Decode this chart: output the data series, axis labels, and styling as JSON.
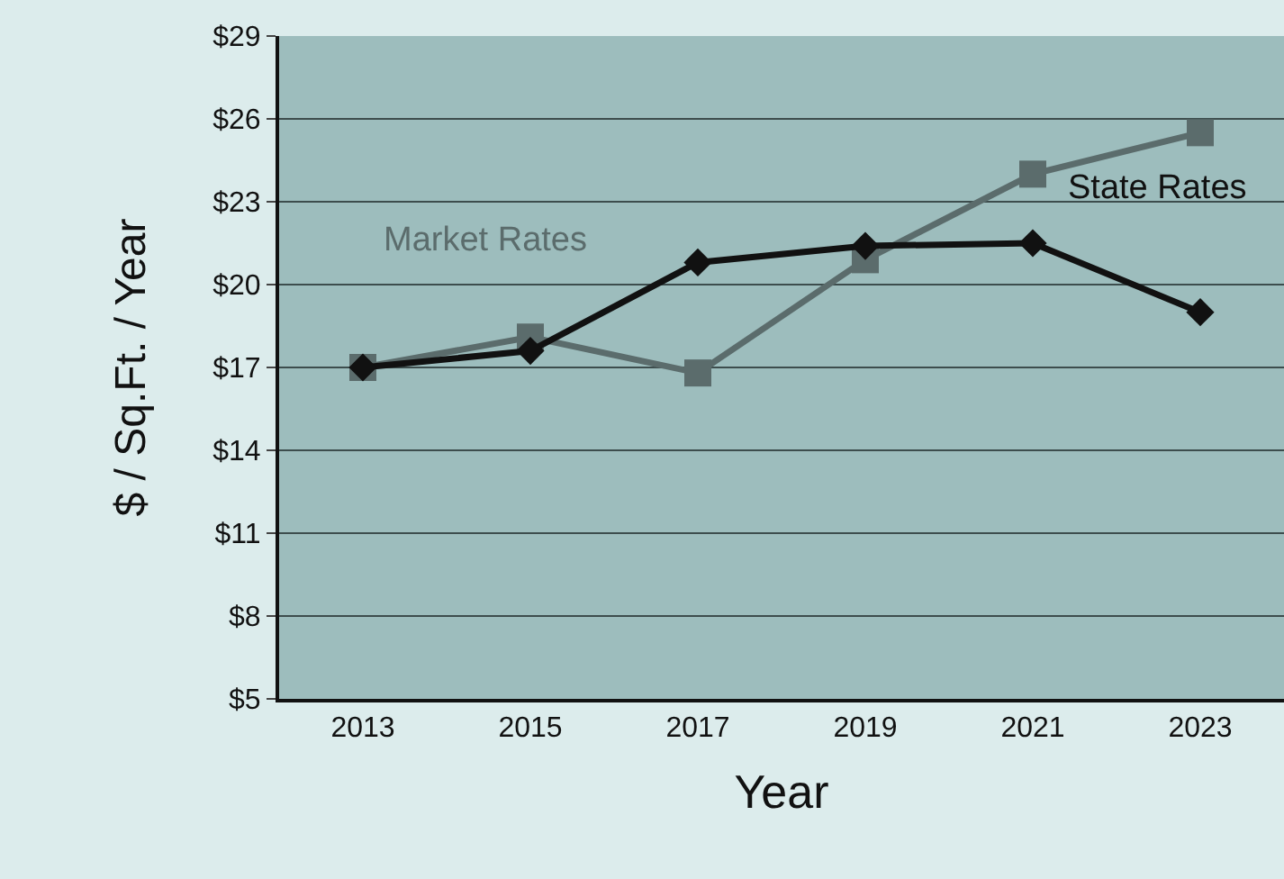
{
  "chart_data": {
    "type": "line",
    "xlabel": "Year",
    "ylabel": "$ / Sq.Ft. / Year",
    "categories": [
      "2013",
      "2015",
      "2017",
      "2019",
      "2021",
      "2023"
    ],
    "series": [
      {
        "name": "Market Rates",
        "color": "#5b6c6c",
        "marker": "square",
        "values": [
          17.0,
          18.1,
          16.8,
          20.9,
          24.0,
          25.5
        ]
      },
      {
        "name": "State Rates",
        "color": "#111111",
        "marker": "diamond",
        "values": [
          17.0,
          17.6,
          20.8,
          21.4,
          21.5,
          19.0
        ]
      }
    ],
    "ylim": [
      5,
      29
    ],
    "yticks": [
      {
        "value": 5,
        "label": "$5"
      },
      {
        "value": 8,
        "label": "$8"
      },
      {
        "value": 11,
        "label": "$11"
      },
      {
        "value": 14,
        "label": "$14"
      },
      {
        "value": 17,
        "label": "$17"
      },
      {
        "value": 20,
        "label": "$20"
      },
      {
        "value": 23,
        "label": "$23"
      },
      {
        "value": 26,
        "label": "$26"
      },
      {
        "value": 29,
        "label": "$29"
      }
    ],
    "grid": "y",
    "legend": false
  }
}
